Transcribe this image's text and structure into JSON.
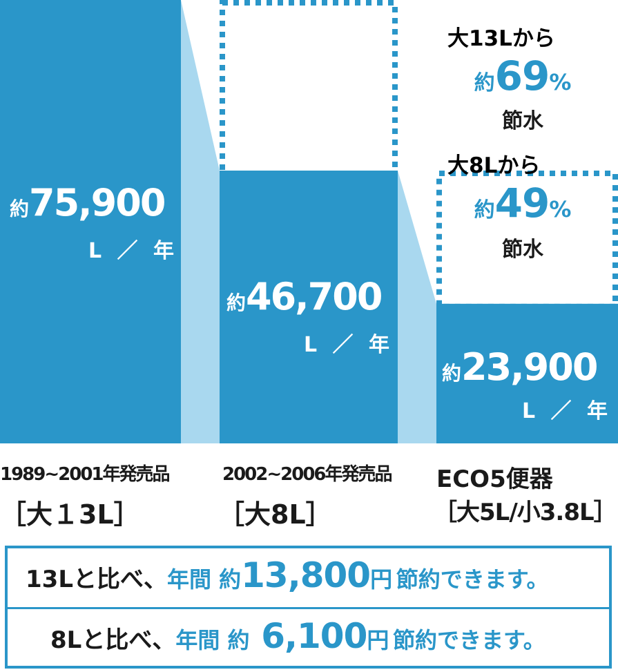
{
  "chart_data": {
    "type": "bar",
    "unit": "L ／ 年",
    "categories": [
      "1989~2001年発売品 [大13L]",
      "2002~2006年発売品 [大8L]",
      "ECO5便器 [大5L/小3.8L]"
    ],
    "values": [
      75900,
      46700,
      23900
    ],
    "labels": [
      "約75,900",
      "約46,700",
      "約23,900"
    ]
  },
  "bars": [
    {
      "line1": "1989~2001年発売品",
      "line2": "［大１3L］",
      "prefix": "約",
      "value_text": "75,900",
      "unit": "L ／ 年"
    },
    {
      "line1": "2002~2006年発売品",
      "line2": "［大8L］",
      "prefix": "約",
      "value_text": "46,700",
      "unit": "L ／ 年"
    },
    {
      "line1": "ECO5便器",
      "line2": "［大5L/小3.8L］",
      "prefix": "約",
      "value_text": "23,900",
      "unit": "L ／ 年"
    }
  ],
  "savings_note": {
    "from13": "大13Lから",
    "pct13_prefix": "約",
    "pct13": "69",
    "pct13_unit": "%",
    "save13": "節水",
    "from8": "大8Lから",
    "pct8_prefix": "約",
    "pct8": "49",
    "pct8_unit": "%",
    "save8": "節水"
  },
  "summary": [
    {
      "lead": "13Lと比べ、",
      "hl": "年間 約",
      "amount": "13,800",
      "yen": "円",
      "tail": "節約できます。"
    },
    {
      "lead": "8Lと比べ、",
      "hl": "年間 約",
      "amount": "6,100",
      "yen": "円",
      "tail": "節約できます。"
    }
  ],
  "colors": {
    "bar": "#2a96c9",
    "connector": "#a9d8ef",
    "dotted": "#2a96c9",
    "text": "#1a1a1a"
  }
}
